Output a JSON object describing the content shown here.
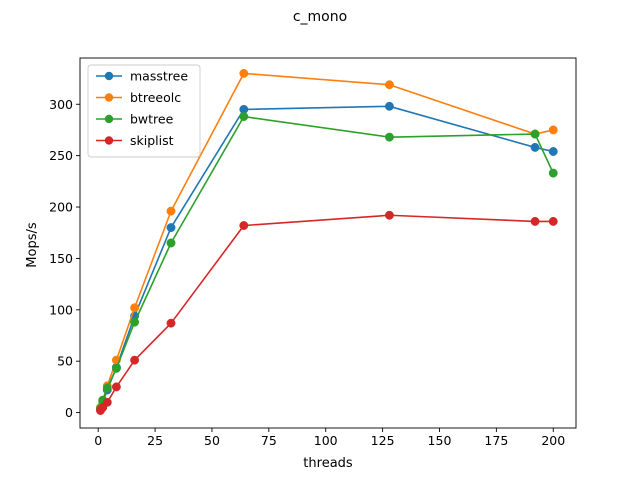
{
  "chart_data": {
    "type": "line",
    "title": "c_mono",
    "xlabel": "threads",
    "ylabel": "Mops/s",
    "xlim": [
      -8,
      210
    ],
    "ylim": [
      -15,
      345
    ],
    "xticks": [
      0,
      25,
      50,
      75,
      100,
      125,
      150,
      175,
      200
    ],
    "yticks": [
      0,
      50,
      100,
      150,
      200,
      250,
      300
    ],
    "grid": false,
    "legend_position": "top-left",
    "series": [
      {
        "name": "masstree",
        "color": "#1f77b4",
        "x": [
          1,
          2,
          4,
          8,
          16,
          32,
          64,
          128,
          192,
          200
        ],
        "y": [
          4,
          10,
          22,
          44,
          94,
          180,
          295,
          298,
          258,
          254
        ]
      },
      {
        "name": "btreeolc",
        "color": "#ff7f0e",
        "x": [
          1,
          2,
          4,
          8,
          16,
          32,
          64,
          128,
          192,
          200
        ],
        "y": [
          5,
          12,
          26,
          51,
          102,
          196,
          330,
          319,
          271,
          275
        ]
      },
      {
        "name": "bwtree",
        "color": "#2ca02c",
        "x": [
          1,
          2,
          4,
          8,
          16,
          32,
          64,
          128,
          192,
          200
        ],
        "y": [
          4,
          12,
          24,
          43,
          88,
          165,
          288,
          268,
          271,
          233
        ]
      },
      {
        "name": "skiplist",
        "color": "#d62728",
        "x": [
          1,
          2,
          4,
          8,
          16,
          32,
          64,
          128,
          192,
          200
        ],
        "y": [
          2,
          5,
          10,
          25,
          51,
          87,
          182,
          192,
          186,
          186
        ]
      }
    ]
  }
}
